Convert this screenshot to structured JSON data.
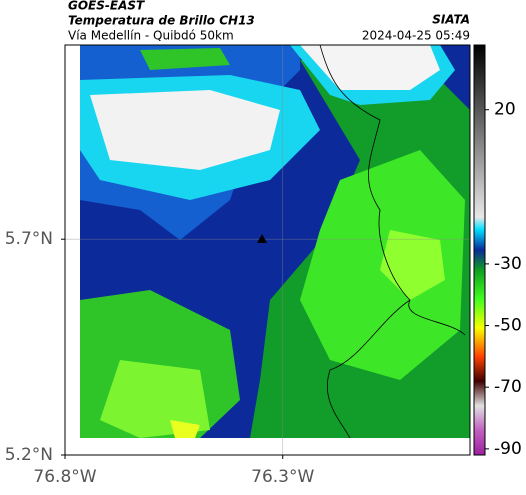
{
  "header": {
    "title": "GOES-EAST",
    "subtitle": "Temperatura de Brillo CH13",
    "location": "Vía Medellín - Quibdó 50km",
    "org": "SIATA",
    "timestamp": "2024-04-25 05:49"
  },
  "map": {
    "lon_lim": [
      -76.8,
      -75.87
    ],
    "lat_lim": [
      5.2,
      6.15
    ],
    "lon_ticks": [
      {
        "value": -76.8,
        "label": "76.8°W"
      },
      {
        "value": -76.3,
        "label": "76.3°W"
      }
    ],
    "lat_ticks": [
      {
        "value": 5.2,
        "label": "5.2°N"
      },
      {
        "value": 5.7,
        "label": "5.7°N"
      }
    ],
    "colorbar": {
      "lim": [
        -92,
        41
      ],
      "ticks": [
        20,
        -30,
        -50,
        -70,
        -90
      ]
    }
  }
}
